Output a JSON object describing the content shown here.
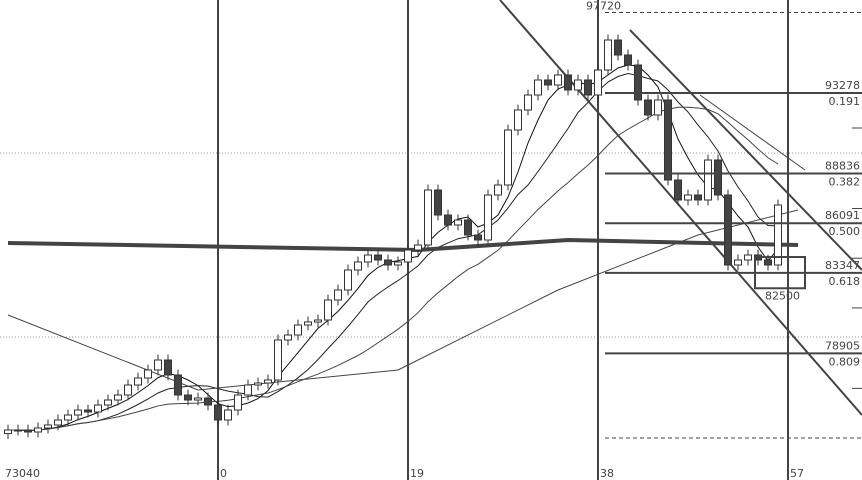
{
  "chart_data": {
    "type": "candlestick",
    "title": "",
    "x_tick_labels": [
      {
        "bar": -21,
        "label": "73040"
      },
      {
        "bar": 0,
        "label": "0"
      },
      {
        "bar": 19,
        "label": "19"
      },
      {
        "bar": 38,
        "label": "38"
      },
      {
        "bar": 57,
        "label": "57"
      }
    ],
    "first_bar_index": -21,
    "closes": [
      74676,
      74676,
      74566,
      74786,
      74952,
      75228,
      75504,
      75780,
      75670,
      76056,
      76332,
      76608,
      77160,
      77546,
      77988,
      78540,
      77712,
      76608,
      76332,
      76442,
      76056,
      75228,
      75780,
      76608,
      77160,
      77270,
      77436,
      79644,
      79920,
      80472,
      80638,
      80748,
      81852,
      82404,
      83508,
      83950,
      84336,
      84060,
      83784,
      83950,
      84612,
      84888,
      87924,
      86544,
      85992,
      86268,
      85440,
      85164,
      87648,
      88200,
      91236,
      92340,
      93168,
      93996,
      93720,
      94272,
      93444,
      93996,
      93168,
      94548,
      96204,
      95376,
      94824,
      92892,
      92064,
      92892,
      88476,
      87372,
      87648,
      87372,
      89580,
      87648,
      83784,
      84060,
      84336,
      84060,
      83784,
      87096
    ],
    "moving_averages": [
      {
        "type": "sma",
        "period": 5,
        "color": "#111111"
      },
      {
        "type": "sma",
        "period": 10,
        "color": "#222222"
      },
      {
        "type": "sma",
        "period": 20,
        "color": "#444444"
      }
    ],
    "long_ma_points": [
      [
        -21,
        84998
      ],
      [
        20,
        84612
      ],
      [
        35,
        85164
      ],
      [
        58,
        84888
      ]
    ],
    "slow_ma_points": [
      [
        -21,
        81024
      ],
      [
        -2,
        76884
      ],
      [
        18,
        77988
      ],
      [
        34,
        82404
      ],
      [
        48,
        85440
      ],
      [
        58,
        86820
      ]
    ],
    "trend_lines": [
      {
        "from": [
          28.2,
          98412
        ],
        "to": [
          64.4,
          75504
        ],
        "weight": "medium"
      },
      {
        "from": [
          41.2,
          96756
        ],
        "to": [
          64.4,
          83508
        ],
        "weight": "medium"
      },
      {
        "from": [
          48.2,
          93168
        ],
        "to": [
          58.7,
          89028
        ],
        "weight": "thin"
      }
    ],
    "fibonacci": {
      "high": {
        "price": 97720,
        "label": "97720"
      },
      "low_box": {
        "price": 82500,
        "label": "82500",
        "from_bar": 53.7,
        "to_bar": 58.7,
        "top": 84224
      },
      "levels": [
        {
          "price": 93278,
          "price_label": "93278",
          "ratio_label": "0.191"
        },
        {
          "price": 88836,
          "price_label": "88836",
          "ratio_label": "0.382"
        },
        {
          "price": 86091,
          "price_label": "86091",
          "ratio_label": "0.500"
        },
        {
          "price": 83347,
          "price_label": "83347",
          "ratio_label": "0.618"
        },
        {
          "price": 78905,
          "price_label": "78905",
          "ratio_label": "0.809"
        }
      ],
      "dashed_levels": [
        97720,
        74234
      ]
    },
    "grid_dotted_prices": [
      89964,
      79810
    ],
    "ylim": [
      71920,
      98412
    ],
    "colors": {
      "up": "#ffffff",
      "down": "#444444",
      "line": "#444444",
      "background": "#ffffff"
    }
  }
}
